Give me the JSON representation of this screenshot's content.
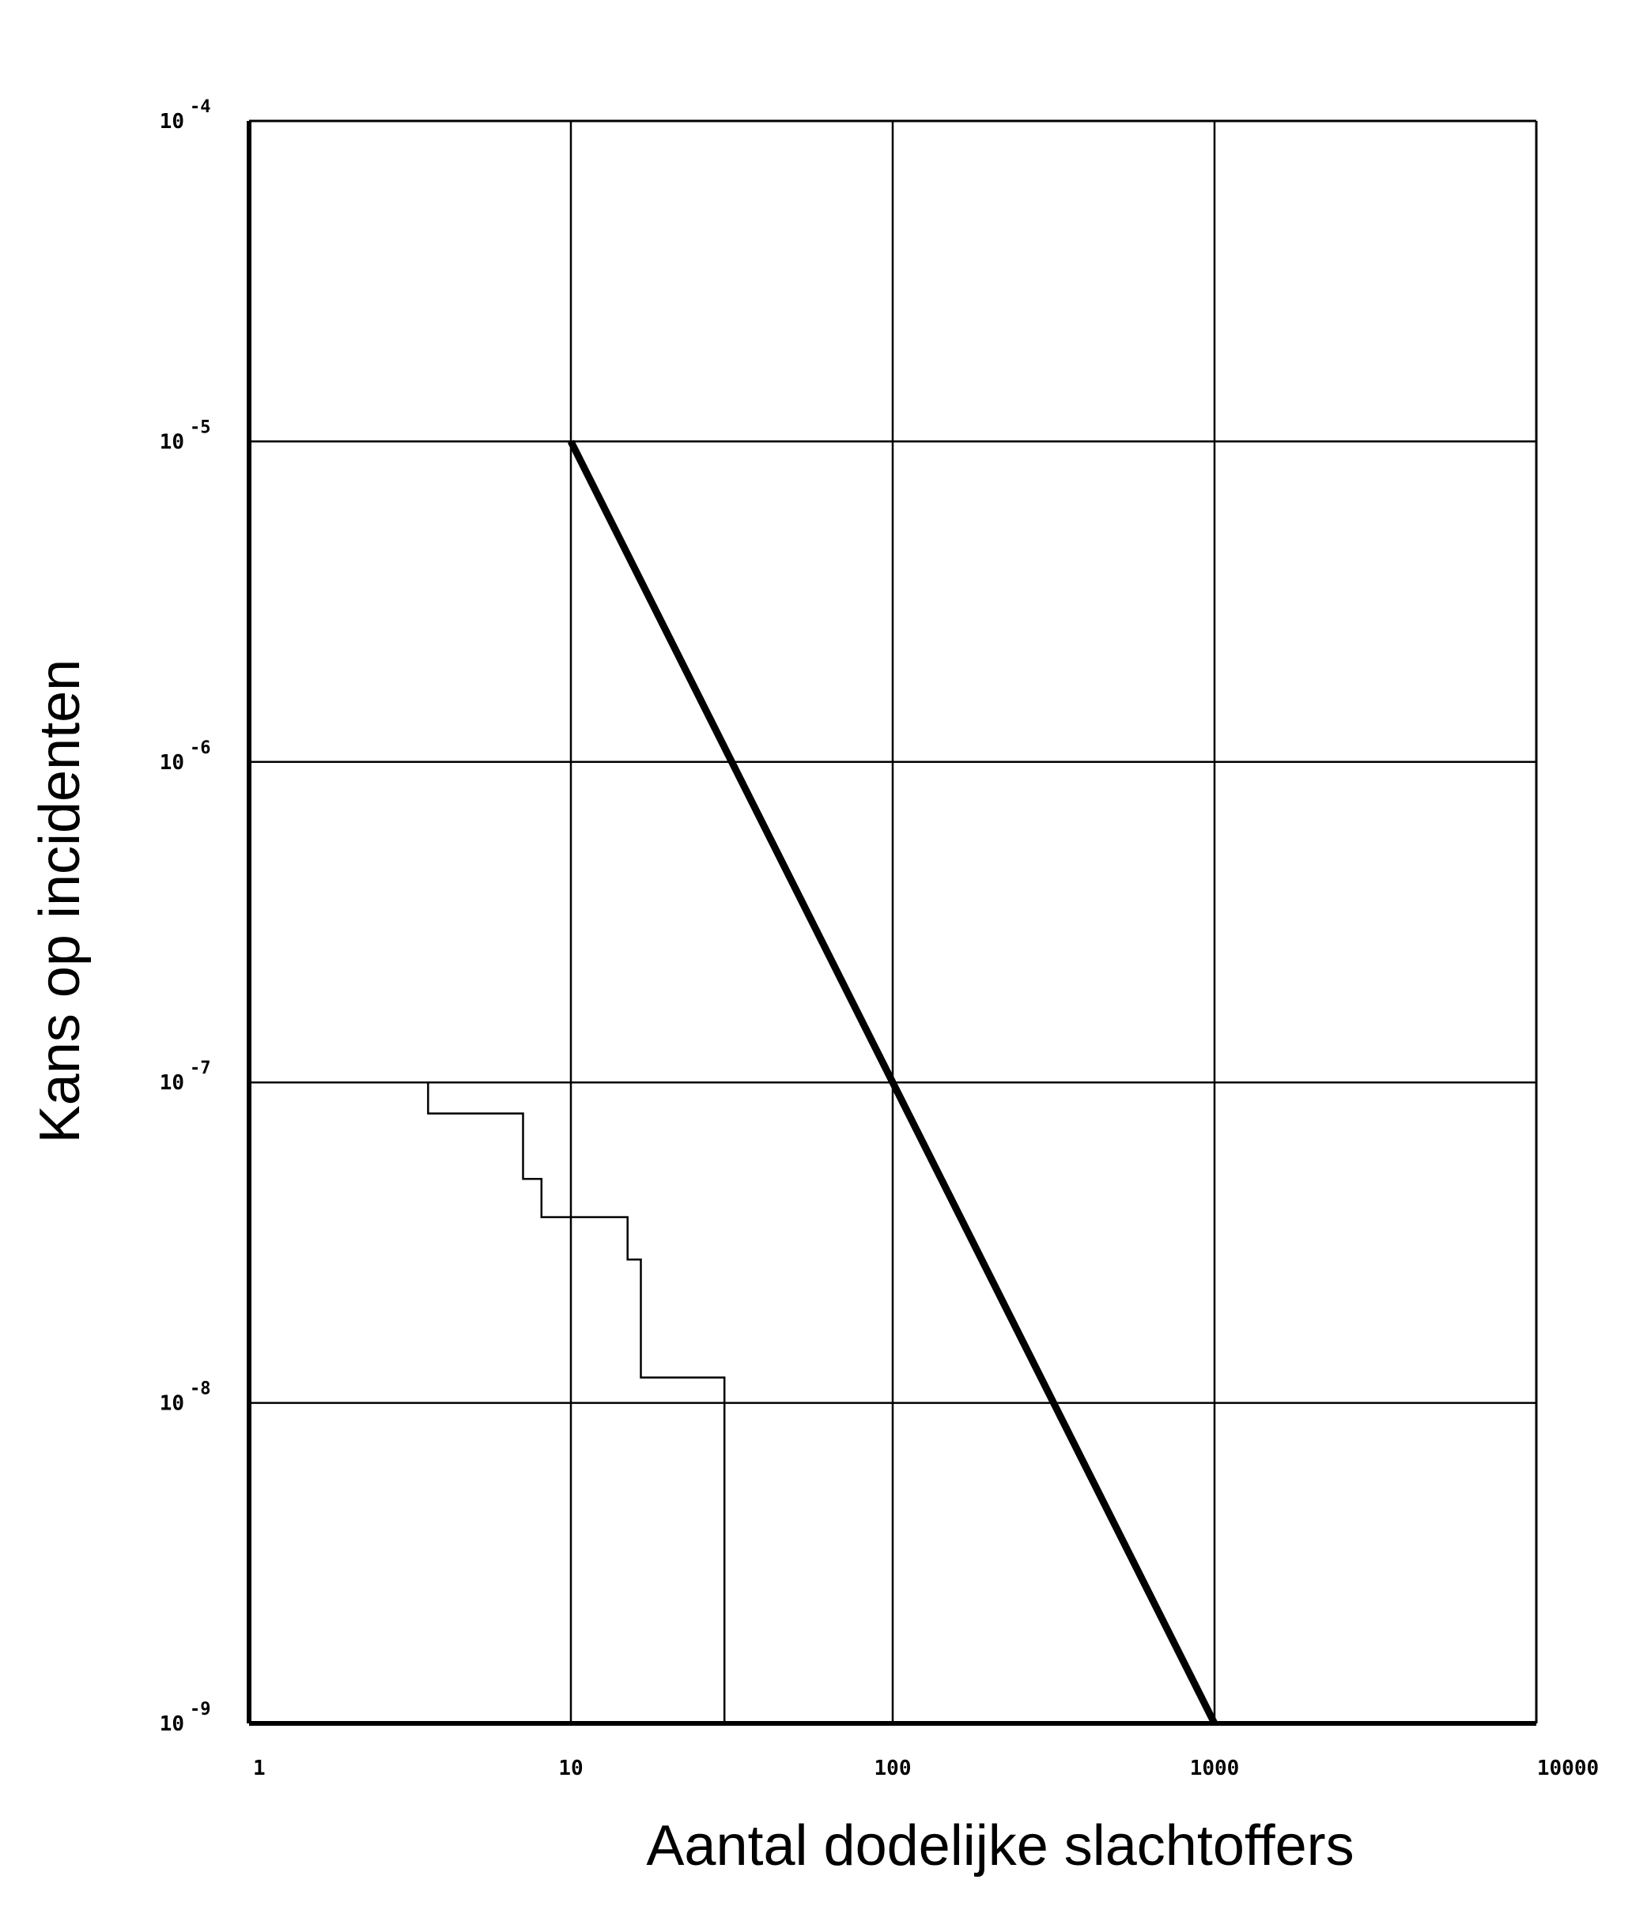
{
  "chart_data": {
    "type": "line",
    "title": "",
    "xlabel": "Aantal dodelijke slachtoffers",
    "ylabel": "Kans op incidenten",
    "x_scale": "log",
    "y_scale": "log",
    "xlim": [
      1,
      10000
    ],
    "ylim": [
      1e-09,
      0.0001
    ],
    "grid": true,
    "x_ticks": [
      {
        "value": 1,
        "label": "1"
      },
      {
        "value": 10,
        "label": "10"
      },
      {
        "value": 100,
        "label": "100"
      },
      {
        "value": 1000,
        "label": "1000"
      },
      {
        "value": 10000,
        "label": "10000"
      }
    ],
    "y_ticks": [
      {
        "value": 0.0001,
        "base": "10",
        "exp": "-4"
      },
      {
        "value": 1e-05,
        "base": "10",
        "exp": "-5"
      },
      {
        "value": 1e-06,
        "base": "10",
        "exp": "-6"
      },
      {
        "value": 1e-07,
        "base": "10",
        "exp": "-7"
      },
      {
        "value": 1e-08,
        "base": "10",
        "exp": "-8"
      },
      {
        "value": 1e-09,
        "base": "10",
        "exp": "-9"
      }
    ],
    "series": [
      {
        "style": "thick",
        "color": "#000000",
        "x": [
          10,
          1000
        ],
        "y": [
          1e-05,
          1e-09
        ]
      },
      {
        "style": "step",
        "color": "#000000",
        "x": [
          1,
          1,
          3.6,
          3.6,
          7.1,
          7.1,
          8.1,
          8.1,
          15,
          15,
          16.5,
          16.5,
          30,
          30
        ],
        "y": [
          1e-07,
          1e-07,
          1e-07,
          8e-08,
          8e-08,
          5e-08,
          5e-08,
          3.8e-08,
          3.8e-08,
          2.8e-08,
          2.8e-08,
          1.2e-08,
          1.2e-08,
          1e-09
        ]
      }
    ]
  }
}
